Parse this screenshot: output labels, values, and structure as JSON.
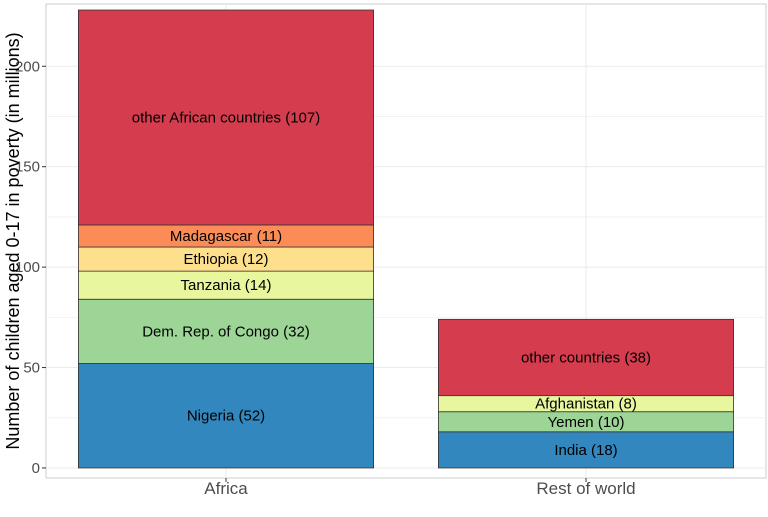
{
  "chart_data": {
    "type": "bar",
    "stacked": true,
    "xlabel": "",
    "ylabel": "Number of children aged 0-17 in poverty (in millions)",
    "ylim": [
      -5,
      231
    ],
    "yticks": [
      0,
      50,
      100,
      150,
      200
    ],
    "grid": true,
    "legend": "none",
    "categories": [
      "Africa",
      "Rest of world"
    ],
    "stacks": [
      {
        "category": "Africa",
        "segments": [
          {
            "label": "Nigeria (52)",
            "value": 52,
            "color": "#3387BF"
          },
          {
            "label": "Dem. Rep. of Congo (32)",
            "value": 32,
            "color": "#9CD596"
          },
          {
            "label": "Tanzania (14)",
            "value": 14,
            "color": "#E8F69E"
          },
          {
            "label": "Ethiopia (12)",
            "value": 12,
            "color": "#FEDF8C"
          },
          {
            "label": "Madagascar (11)",
            "value": 11,
            "color": "#FB8C58"
          },
          {
            "label": "other African countries (107)",
            "value": 107,
            "color": "#D53D4E"
          }
        ]
      },
      {
        "category": "Rest of world",
        "segments": [
          {
            "label": "India (18)",
            "value": 18,
            "color": "#3387BF"
          },
          {
            "label": "Yemen (10)",
            "value": 10,
            "color": "#9CD596"
          },
          {
            "label": "Afghanistan (8)",
            "value": 8,
            "color": "#E8F69E"
          },
          {
            "label": "other countries (38)",
            "value": 38,
            "color": "#D53D4E"
          }
        ]
      }
    ]
  }
}
